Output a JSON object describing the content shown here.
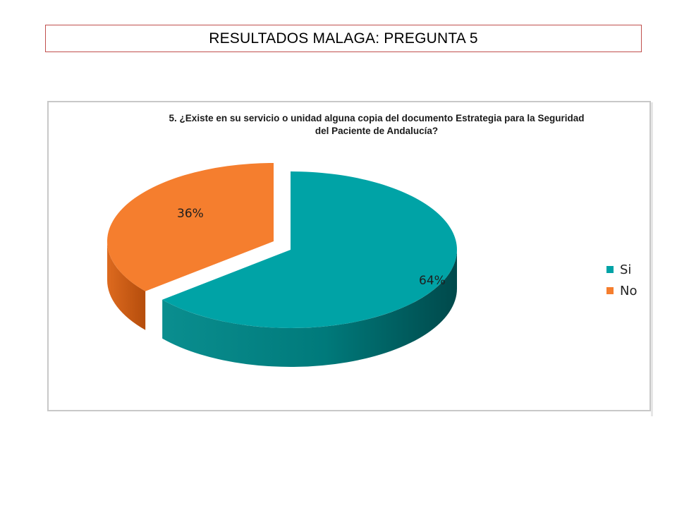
{
  "header": {
    "title": "RESULTADOS MALAGA: PREGUNTA 5"
  },
  "chart_data": {
    "type": "pie",
    "title": "5. ¿Existe en su servicio o unidad alguna copia del documento Estrategia para la Seguridad del Paciente de Andalucía?",
    "title_lines": [
      "5. ¿Existe en su servicio o unidad alguna copia del documento Estrategia para la Seguridad",
      "del Paciente de Andalucía?"
    ],
    "categories": [
      "Si",
      "No"
    ],
    "values": [
      64,
      36
    ],
    "data_labels": [
      "64%",
      "36%"
    ],
    "colors": [
      "#00a3a6",
      "#f57e2e"
    ],
    "legend_position": "right",
    "style": "3d-exploded"
  }
}
